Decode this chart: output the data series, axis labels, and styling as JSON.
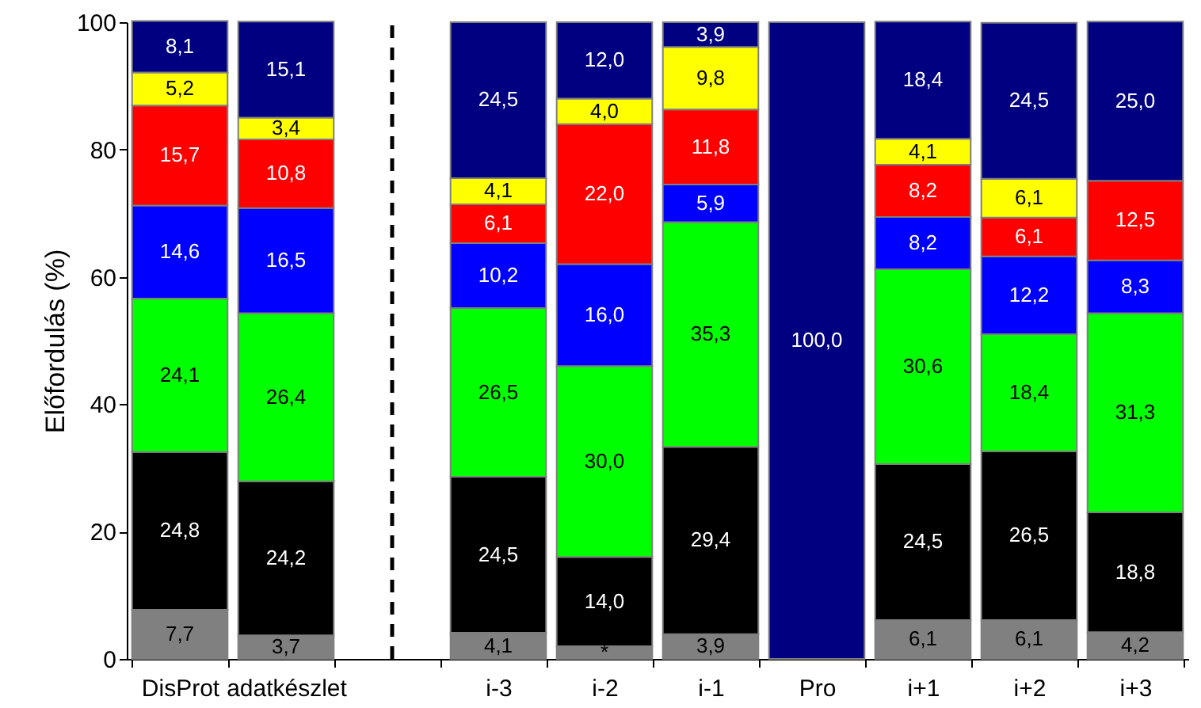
{
  "chart_data": {
    "type": "bar",
    "stacked": true,
    "ylabel": "Előfordulás (%)",
    "categories": [
      "DisProt",
      "adatkészlet",
      "i-3",
      "i-2",
      "i-1",
      "Pro",
      "i+1",
      "i+2",
      "i+3"
    ],
    "ylim": [
      0,
      100
    ],
    "yticks": [
      0,
      20,
      40,
      60,
      80,
      100
    ],
    "grid": false,
    "series": [
      {
        "color": "#808080",
        "values": [
          7.7,
          3.7,
          4.1,
          2.0,
          3.9,
          null,
          6.1,
          6.1,
          4.2
        ],
        "value_labels": [
          "7,7",
          "3,7",
          "4,1",
          "*",
          "3,9",
          null,
          "6,1",
          "6,1",
          "4,2"
        ]
      },
      {
        "color": "#000000",
        "values": [
          24.8,
          24.2,
          24.5,
          14.0,
          29.4,
          null,
          24.5,
          26.5,
          18.8
        ],
        "value_labels": [
          "24,8",
          "24,2",
          "24,5",
          "14,0",
          "29,4",
          null,
          "24,5",
          "26,5",
          "18,8"
        ]
      },
      {
        "color": "#00ff00",
        "values": [
          24.1,
          26.4,
          26.5,
          30.0,
          35.3,
          null,
          30.6,
          18.4,
          31.3
        ],
        "value_labels": [
          "24,1",
          "26,4",
          "26,5",
          "30,0",
          "35,3",
          null,
          "30,6",
          "18,4",
          "31,3"
        ]
      },
      {
        "color": "#0000ff",
        "values": [
          14.6,
          16.5,
          10.2,
          16.0,
          5.9,
          null,
          8.2,
          12.2,
          8.3
        ],
        "value_labels": [
          "14,6",
          "16,5",
          "10,2",
          "16,0",
          "5,9",
          null,
          "8,2",
          "12,2",
          "8,3"
        ]
      },
      {
        "color": "#ff0000",
        "values": [
          15.7,
          10.8,
          6.1,
          22.0,
          11.8,
          null,
          8.2,
          6.1,
          12.5
        ],
        "value_labels": [
          "15,7",
          "10,8",
          "6,1",
          "22,0",
          "11,8",
          null,
          "8,2",
          "6,1",
          "12,5"
        ]
      },
      {
        "color": "#ffff00",
        "values": [
          5.2,
          3.4,
          4.1,
          4.0,
          9.8,
          null,
          4.1,
          6.1,
          null
        ],
        "value_labels": [
          "5,2",
          "3,4",
          "4,1",
          "4,0",
          "9,8",
          null,
          "4,1",
          "6,1",
          null
        ]
      },
      {
        "color": "#000080",
        "values": [
          8.1,
          15.1,
          24.5,
          12.0,
          3.9,
          100.0,
          18.4,
          24.5,
          25.0
        ],
        "value_labels": [
          "8,1",
          "15,1",
          "24,5",
          "12,0",
          "3,9",
          "100,0",
          "18,4",
          "24,5",
          "25,0"
        ]
      }
    ]
  }
}
